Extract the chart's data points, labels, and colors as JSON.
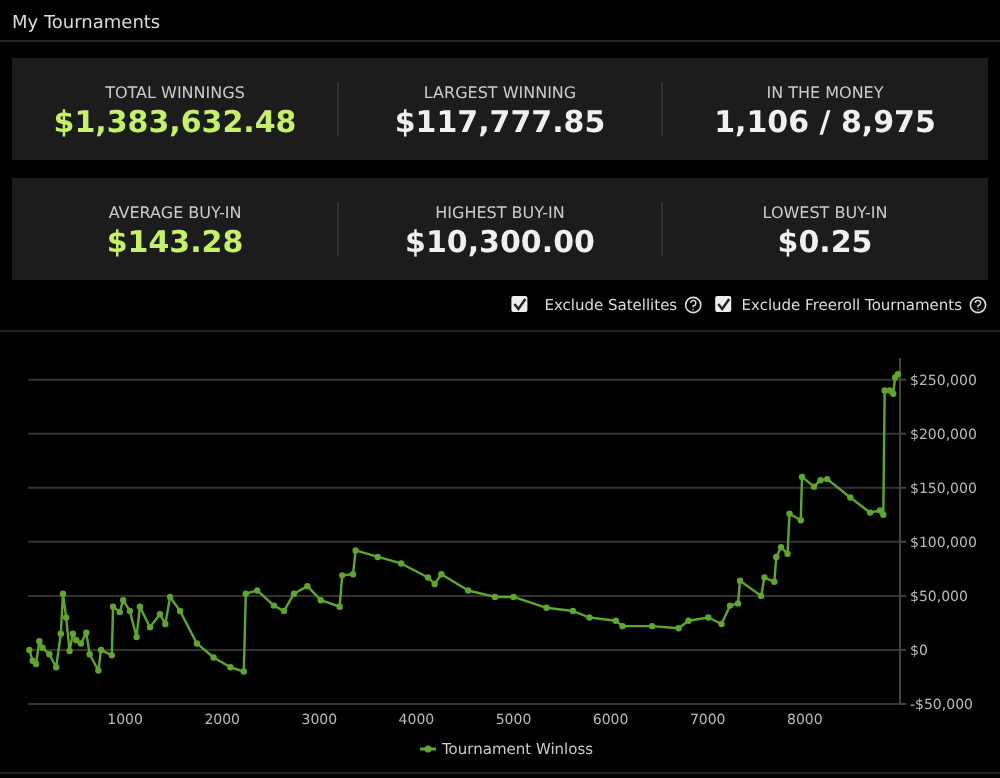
{
  "chart_data": [
    {
      "type": "other",
      "title": "My Tournaments",
      "annotations": [
        "TOTAL WINNINGS",
        "$1,383,632.48",
        "LARGEST WINNING",
        "$117,777.85",
        "IN THE MONEY",
        "1,106 / 8,975",
        "AVERAGE BUY-IN",
        "$143.28",
        "HIGHEST BUY-IN",
        "$10,300.00",
        "LOWEST BUY-IN",
        "$0.25",
        "Exclude Satellites",
        "Exclude Freeroll Tournaments"
      ]
    },
    {
      "type": "line",
      "x": [
        14,
        48,
        83,
        117,
        150,
        220,
        290,
        338,
        360,
        393,
        428,
        462,
        497,
        545,
        600,
        635,
        725,
        752,
        863,
        876,
        945,
        980,
        1049,
        1118,
        1152,
        1256,
        1359,
        1414,
        1463,
        1566,
        1739,
        1911,
        2084,
        2222,
        2243,
        2360,
        2532,
        2636,
        2739,
        2877,
        3015,
        3209,
        3236,
        3347,
        3374,
        3602,
        3843,
        4119,
        4188,
        4257,
        4533,
        4809,
        5000,
        5340,
        5612,
        5782,
        6054,
        6122,
        6428,
        6700,
        6802,
        7006,
        7142,
        7230,
        7312,
        7332,
        7550,
        7584,
        7686,
        7706,
        7754,
        7822,
        7842,
        7958,
        7971,
        8094,
        8162,
        8230,
        8468,
        8672,
        8774,
        8808,
        8822,
        8876,
        8910,
        8930,
        8958
      ],
      "series": [
        {
          "name": "Tournament Winloss",
          "color": "#5fa52f",
          "values": [
            0,
            -10000,
            -13000,
            8000,
            2000,
            -4000,
            -16000,
            15000,
            52000,
            30000,
            -1000,
            15000,
            9000,
            6000,
            16000,
            -4000,
            -19000,
            0,
            -5000,
            40000,
            35000,
            46000,
            36000,
            12000,
            40000,
            21000,
            33000,
            24000,
            49000,
            36000,
            6000,
            -7000,
            -16000,
            -20000,
            52000,
            55000,
            41000,
            36000,
            52000,
            59000,
            46000,
            40000,
            69000,
            70000,
            92000,
            86000,
            80000,
            67000,
            61000,
            70000,
            55000,
            49000,
            49000,
            39000,
            36000,
            30000,
            27000,
            22000,
            22000,
            20000,
            27000,
            30000,
            24000,
            41000,
            43000,
            64000,
            50000,
            67000,
            63000,
            86000,
            95000,
            89000,
            126000,
            120000,
            160000,
            151000,
            157000,
            158000,
            141000,
            127000,
            129000,
            125000,
            240000,
            240000,
            237000,
            252000,
            255000
          ]
        }
      ],
      "xlim": [
        0,
        8980
      ],
      "xticks": [
        1000,
        2000,
        3000,
        4000,
        5000,
        6000,
        7000,
        8000
      ],
      "ylim": [
        -50000,
        270000
      ],
      "yticks": [
        {
          "value": -50000,
          "label": "-$50,000"
        },
        {
          "value": 0,
          "label": "$0"
        },
        {
          "value": 50000,
          "label": "$50,000"
        },
        {
          "value": 100000,
          "label": "$100,000"
        },
        {
          "value": 150000,
          "label": "$150,000"
        },
        {
          "value": 200000,
          "label": "$200,000"
        },
        {
          "value": 250000,
          "label": "$250,000"
        }
      ],
      "grid": "y",
      "legend": "bottom",
      "marker": "circle",
      "line_style": "solid"
    }
  ]
}
